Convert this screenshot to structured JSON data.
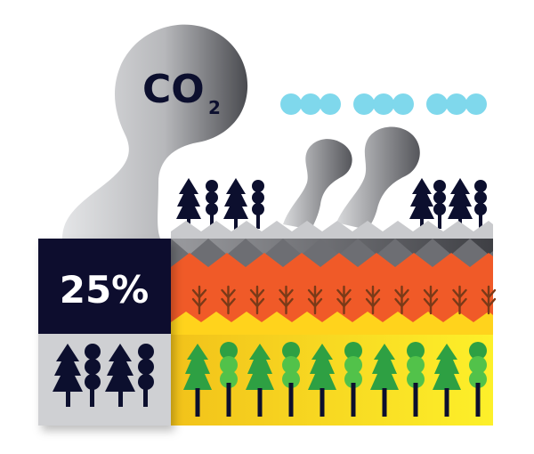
{
  "co2_label": {
    "main": "CO",
    "subscript": "2"
  },
  "stat": {
    "value": "25%"
  },
  "colors": {
    "navy": "#0c0f2e",
    "smoke_light": "#d2d3d5",
    "smoke_dark": "#5a5b60",
    "cloud": "#7fd8ec",
    "fire_orange": "#f05a28",
    "fire_yellow": "#ffd31c",
    "forest_yellow": "#fde81c",
    "tree_green": "#2ea043",
    "tree_green_light": "#52c24a",
    "ash_gray": "#9a9b9f",
    "panel_gray": "#cfd0d3"
  },
  "icons": {
    "tree_types": [
      "pine-tree-icon",
      "round-tree-icon"
    ],
    "fire_sprouts": "burnt-sprout-icon",
    "clouds": "cloud-icon",
    "smoke": "smoke-plume-icon"
  }
}
